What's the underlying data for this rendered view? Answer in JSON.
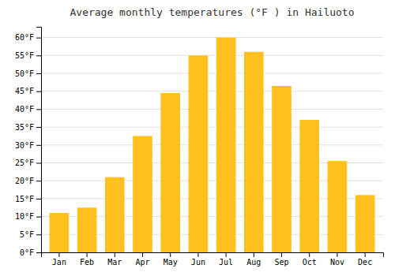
{
  "chart_data": {
    "type": "bar",
    "title": "Average monthly temperatures (°F ) in Hailuoto",
    "categories": [
      "Jan",
      "Feb",
      "Mar",
      "Apr",
      "May",
      "Jun",
      "Jul",
      "Aug",
      "Sep",
      "Oct",
      "Nov",
      "Dec"
    ],
    "values": [
      11,
      12.5,
      21,
      32.5,
      44.5,
      55,
      60,
      56,
      46.5,
      37,
      25.5,
      16
    ],
    "color": "#FFC020",
    "ylim": [
      0,
      63
    ],
    "yticks": [
      {
        "value": 0,
        "label": "0°F"
      },
      {
        "value": 5,
        "label": "5°F"
      },
      {
        "value": 10,
        "label": "10°F"
      },
      {
        "value": 15,
        "label": "15°F"
      },
      {
        "value": 20,
        "label": "20°F"
      },
      {
        "value": 25,
        "label": "25°F"
      },
      {
        "value": 30,
        "label": "30°F"
      },
      {
        "value": 35,
        "label": "35°F"
      },
      {
        "value": 40,
        "label": "40°F"
      },
      {
        "value": 45,
        "label": "45°F"
      },
      {
        "value": 50,
        "label": "50°F"
      },
      {
        "value": 55,
        "label": "55°F"
      },
      {
        "value": 60,
        "label": "60°F"
      }
    ],
    "grid": true
  }
}
